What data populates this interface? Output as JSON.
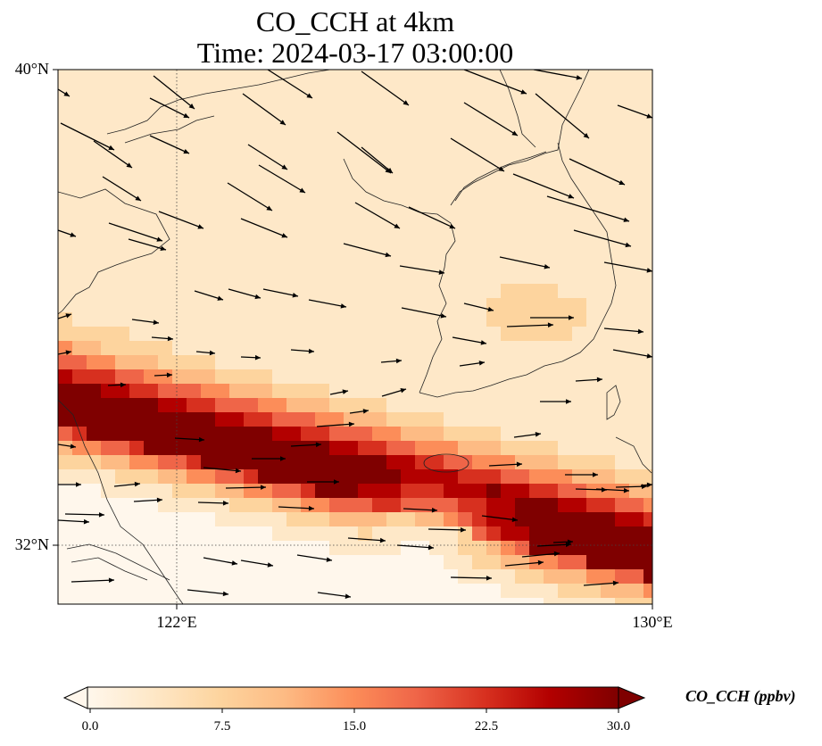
{
  "title": {
    "line1": "CO_CCH at 4km",
    "line2": "Time: 2024-03-17 03:00:00"
  },
  "map": {
    "lat_range": [
      31.3,
      40.0
    ],
    "lon_range": [
      120.0,
      130.0
    ],
    "lat_ticks": [
      "40°N",
      "32°N"
    ],
    "lon_ticks": [
      "122°E",
      "130°E"
    ],
    "gridlines": {
      "lat": 32,
      "lon": 122,
      "style": "dotted"
    },
    "field": "CO_CCH",
    "description_band": "high concentration band from southwest to east across 32-35°N, low values in north",
    "overlays": [
      "coastlines",
      "wind-vectors"
    ]
  },
  "colorbar": {
    "label": "CO_CCH (ppbv)",
    "ticks": [
      "0.0",
      "7.5",
      "15.0",
      "22.5",
      "30.0"
    ],
    "range": [
      0,
      30
    ],
    "extend": "both",
    "colors": [
      "#fff7ec",
      "#fee8c8",
      "#fdd49e",
      "#fdbb84",
      "#fc8d59",
      "#ef6548",
      "#d7301f",
      "#b30000",
      "#7f0000"
    ]
  }
}
